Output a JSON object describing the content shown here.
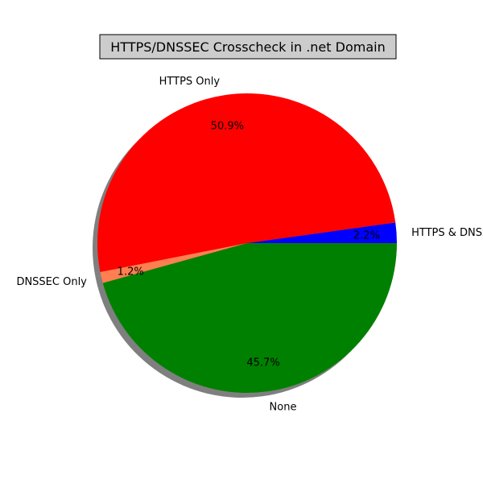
{
  "chart_data": {
    "type": "pie",
    "title": "HTTPS/DNSSEC Crosscheck in .net Domain",
    "labels": [
      "HTTPS & DNSSEC",
      "HTTPS Only",
      "DNSSEC Only",
      "None"
    ],
    "values": [
      2.2,
      50.9,
      1.2,
      45.7
    ],
    "percent_labels": [
      "2.2%",
      "50.9%",
      "1.2%",
      "45.7%"
    ],
    "colors": [
      "#0000ff",
      "#ff0000",
      "#ff7f50",
      "#008000"
    ],
    "start_angle_deg": 0,
    "direction": "counterclockwise",
    "shadow": true,
    "title_box": true
  }
}
